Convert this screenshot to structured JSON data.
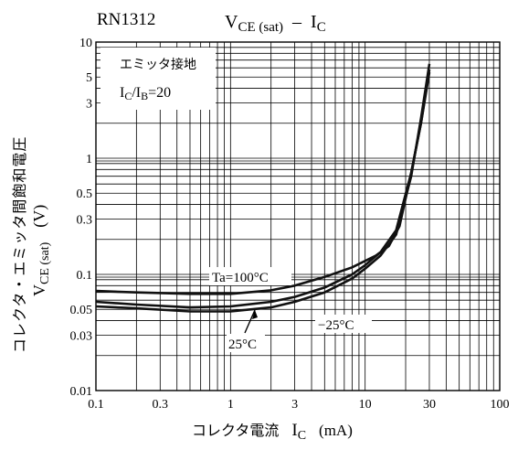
{
  "chart_data": {
    "type": "line",
    "part_number": "RN1312",
    "title": {
      "v": "V",
      "v_sub": "CE (sat)",
      "dash": "–",
      "i": "I",
      "i_sub": "C"
    },
    "xlabel": {
      "jp": "コレクタ電流",
      "i": "I",
      "i_sub": "C",
      "unit": "(mA)"
    },
    "ylabel": {
      "jp": "コレクタ・エミッタ間飽和電圧",
      "v": "V",
      "v_sub": "CE (sat)",
      "unit": "(V)"
    },
    "xscale": "log",
    "yscale": "log",
    "xlim": [
      0.1,
      100
    ],
    "ylim": [
      0.01,
      10
    ],
    "grid": true,
    "x_tick_labels": [
      {
        "v": 0.1,
        "t": "0.1"
      },
      {
        "v": 0.3,
        "t": "0.3"
      },
      {
        "v": 1,
        "t": "1"
      },
      {
        "v": 3,
        "t": "3"
      },
      {
        "v": 10,
        "t": "10"
      },
      {
        "v": 30,
        "t": "30"
      },
      {
        "v": 100,
        "t": "100"
      }
    ],
    "y_tick_labels": [
      {
        "v": 0.01,
        "t": "0.01"
      },
      {
        "v": 0.03,
        "t": "0.03"
      },
      {
        "v": 0.05,
        "t": "0.05"
      },
      {
        "v": 0.1,
        "t": "0.1"
      },
      {
        "v": 0.3,
        "t": "0.3"
      },
      {
        "v": 0.5,
        "t": "0.5"
      },
      {
        "v": 1,
        "t": "1"
      },
      {
        "v": 3,
        "t": "3"
      },
      {
        "v": 5,
        "t": "5"
      },
      {
        "v": 10,
        "t": "10"
      }
    ],
    "conditions": {
      "line1": "エミッタ接地",
      "ratio": {
        "i": "I",
        "c": "C",
        "slash": "/",
        "ib": "I",
        "b": "B",
        "eq": "=20"
      }
    },
    "series": [
      {
        "name": "Ta=100°C",
        "x": [
          0.1,
          0.2,
          0.5,
          1,
          2,
          3,
          5,
          8,
          12,
          15,
          18,
          22,
          26,
          30
        ],
        "y": [
          0.072,
          0.07,
          0.068,
          0.068,
          0.073,
          0.08,
          0.095,
          0.115,
          0.145,
          0.175,
          0.26,
          0.75,
          2.0,
          5.5
        ]
      },
      {
        "name": "25°C",
        "x": [
          0.1,
          0.2,
          0.5,
          1,
          2,
          3,
          5,
          8,
          10,
          13,
          17,
          22,
          26,
          30
        ],
        "y": [
          0.058,
          0.055,
          0.052,
          0.053,
          0.058,
          0.064,
          0.077,
          0.1,
          0.12,
          0.155,
          0.24,
          0.75,
          2.0,
          5.8
        ]
      },
      {
        "name": "−25°C",
        "x": [
          0.1,
          0.2,
          0.5,
          1,
          2,
          3,
          5,
          8,
          10,
          13,
          17,
          22,
          26,
          30
        ],
        "y": [
          0.053,
          0.051,
          0.048,
          0.048,
          0.052,
          0.058,
          0.07,
          0.092,
          0.112,
          0.145,
          0.22,
          0.7,
          2.2,
          6.5
        ]
      }
    ],
    "annotations": {
      "ta100": "Ta=100°C",
      "t25": "25°C",
      "tm25": "−25°C"
    }
  }
}
